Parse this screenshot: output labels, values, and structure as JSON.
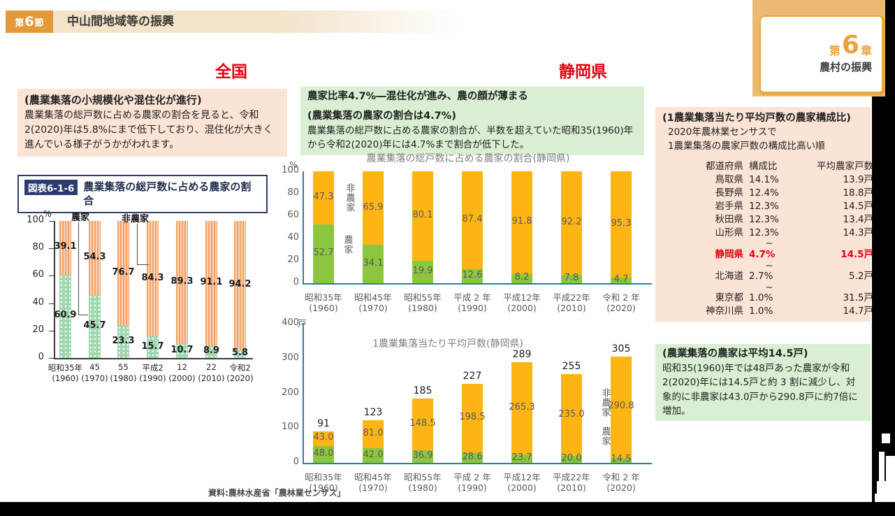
{
  "header": {
    "section_label": {
      "prefix": "第",
      "number": "6",
      "suffix": "節"
    },
    "section_title": "中山間地域等の振興"
  },
  "chapter_tab": {
    "prefix": "第",
    "number": "6",
    "suffix": "章",
    "title": "農村の振興"
  },
  "region_labels": {
    "left": "全国",
    "right": "静岡県"
  },
  "left_panel": {
    "summary_box": {
      "title": "(農業集落の小規模化や混住化が進行)",
      "body": "農業集落の総戸数に占める農家の割合を見ると、令和2(2020)年は5.8%にまで低下しており、混住化が大きく進んでいる様子がうかがわれます。"
    }
  },
  "middle_panel": {
    "headline": "農家比率4.7%―混住化が進み、農の顔が薄まる",
    "summary_box": {
      "title": "(農業集落の農家の割合は4.7%)",
      "body": "農業集落の総戸数に占める農家の割合が、半数を超えていた昭和35(1960)年から令和2(2020)年には4.7%まで割合が低下した。"
    }
  },
  "right_panel": {
    "ranking_box": {
      "title": "(1農業集落当たり平均戸数の農家構成比)",
      "subtitle_line1": "2020年農林業センサスで",
      "subtitle_line2": "1農業集落の農家戸数の構成比高い順",
      "columns": [
        "都道府県",
        "構成比",
        "平均農家戸数"
      ],
      "rows": [
        {
          "pref": "鳥取県",
          "ratio": "14.1%",
          "avg": "13.9戸"
        },
        {
          "pref": "長野県",
          "ratio": "12.4%",
          "avg": "18.8戸"
        },
        {
          "pref": "岩手県",
          "ratio": "12.3%",
          "avg": "14.5戸"
        },
        {
          "pref": "秋田県",
          "ratio": "12.3%",
          "avg": "13.4戸"
        },
        {
          "pref": "山形県",
          "ratio": "12.3%",
          "avg": "14.3戸"
        },
        {
          "sep": "~"
        },
        {
          "pref": "静岡県",
          "ratio": "4.7%",
          "avg": "14.5戸",
          "highlight": true
        },
        {
          "sep": "~"
        },
        {
          "pref": "北海道",
          "ratio": "2.7%",
          "avg": "5.2戸"
        },
        {
          "sep": "~"
        },
        {
          "pref": "東京都",
          "ratio": "1.0%",
          "avg": "31.5戸"
        },
        {
          "pref": "神奈川県",
          "ratio": "1.0%",
          "avg": "14.7戸"
        }
      ]
    },
    "summary_box": {
      "title": "(農業集落の農家は平均14.5戸)",
      "body": "昭和35(1960)年では48戸あった農家が令和2(2020)年には14.5戸と約 3 割に減少し、対象的に非農家は43.0戸から290.8戸に約7倍に増加。"
    }
  },
  "source_note": "資料:農林水産省「農林業センサス」",
  "colors": {
    "badge_orange": "#e29a3a",
    "tab_border_gold": "#eda73f",
    "red_accent": "#e60012",
    "pink_box": "#fbe3d5",
    "green_box": "#d9eed2",
    "figure_navy": "#2c3c6e",
    "axis_teal": "#2e7d9b"
  },
  "chart_data": [
    {
      "id": "national-farm-ratio",
      "type": "bar",
      "stacked": true,
      "figure_id": "図表6-1-6",
      "title": "農業集落の総戸数に占める農家の割合",
      "ylabel": "%",
      "ylim": [
        0,
        100
      ],
      "yticks": [
        0,
        20,
        40,
        60,
        80,
        100
      ],
      "legend_position": "top",
      "categories": [
        [
          "昭和35年",
          "(1960)"
        ],
        [
          "45",
          "(1970)"
        ],
        [
          "55",
          "(1980)"
        ],
        [
          "平成2",
          "(1990)"
        ],
        [
          "12",
          "(2000)"
        ],
        [
          "22",
          "(2010)"
        ],
        [
          "令和2",
          "(2020)"
        ]
      ],
      "series": [
        {
          "name": "農家",
          "values": [
            60.9,
            45.7,
            23.3,
            15.7,
            10.7,
            8.9,
            5.8
          ],
          "color": "#9fd8b0",
          "pattern": "dots"
        },
        {
          "name": "非農家",
          "values": [
            39.1,
            54.3,
            76.7,
            84.3,
            89.3,
            91.1,
            94.2
          ],
          "color": "#f2a066",
          "pattern": "vertical-stripes"
        }
      ]
    },
    {
      "id": "shizuoka-farm-ratio",
      "type": "bar",
      "stacked": true,
      "title": "農業集落の総戸数に占める農家の割合(静岡県)",
      "ylabel": "%",
      "ylim": [
        0,
        100
      ],
      "yticks": [
        0,
        20,
        40,
        60,
        80,
        100
      ],
      "categories": [
        [
          "昭和35年",
          "(1960)"
        ],
        [
          "昭和45年",
          "(1970)"
        ],
        [
          "昭和55年",
          "(1980)"
        ],
        [
          "平成 2 年",
          "(1990)"
        ],
        [
          "平成12年",
          "(2000)"
        ],
        [
          "平成22年",
          "(2010)"
        ],
        [
          "令和 2 年",
          "(2020)"
        ]
      ],
      "series": [
        {
          "name": "農家",
          "values": [
            52.7,
            34.1,
            19.9,
            12.6,
            8.2,
            7.8,
            4.7
          ],
          "color": "#8cc63f"
        },
        {
          "name": "非農家",
          "values": [
            47.3,
            65.9,
            80.1,
            87.4,
            91.8,
            92.2,
            95.3
          ],
          "color": "#fdb515"
        }
      ]
    },
    {
      "id": "shizuoka-avg-households",
      "type": "bar",
      "stacked": true,
      "title": "1農業集落当たり平均戸数(静岡県)",
      "ylabel": "戸",
      "ylim": [
        0,
        400
      ],
      "yticks": [
        0,
        100,
        200,
        300,
        400
      ],
      "categories": [
        [
          "昭和35年",
          "(1960)"
        ],
        [
          "昭和45年",
          "(1970)"
        ],
        [
          "昭和55年",
          "(1980)"
        ],
        [
          "平成 2 年",
          "(1990)"
        ],
        [
          "平成12年",
          "(2000)"
        ],
        [
          "平成22年",
          "(2010)"
        ],
        [
          "令和 2 年",
          "(2020)"
        ]
      ],
      "series": [
        {
          "name": "農家",
          "values": [
            48.0,
            42.0,
            36.9,
            28.6,
            23.7,
            20.0,
            14.5
          ],
          "color": "#8cc63f"
        },
        {
          "name": "非農家",
          "values": [
            43.0,
            81.0,
            148.5,
            198.5,
            265.3,
            235.0,
            290.8
          ],
          "color": "#fdb515"
        }
      ],
      "totals": [
        91,
        123,
        185,
        227,
        289,
        255,
        305
      ]
    }
  ]
}
